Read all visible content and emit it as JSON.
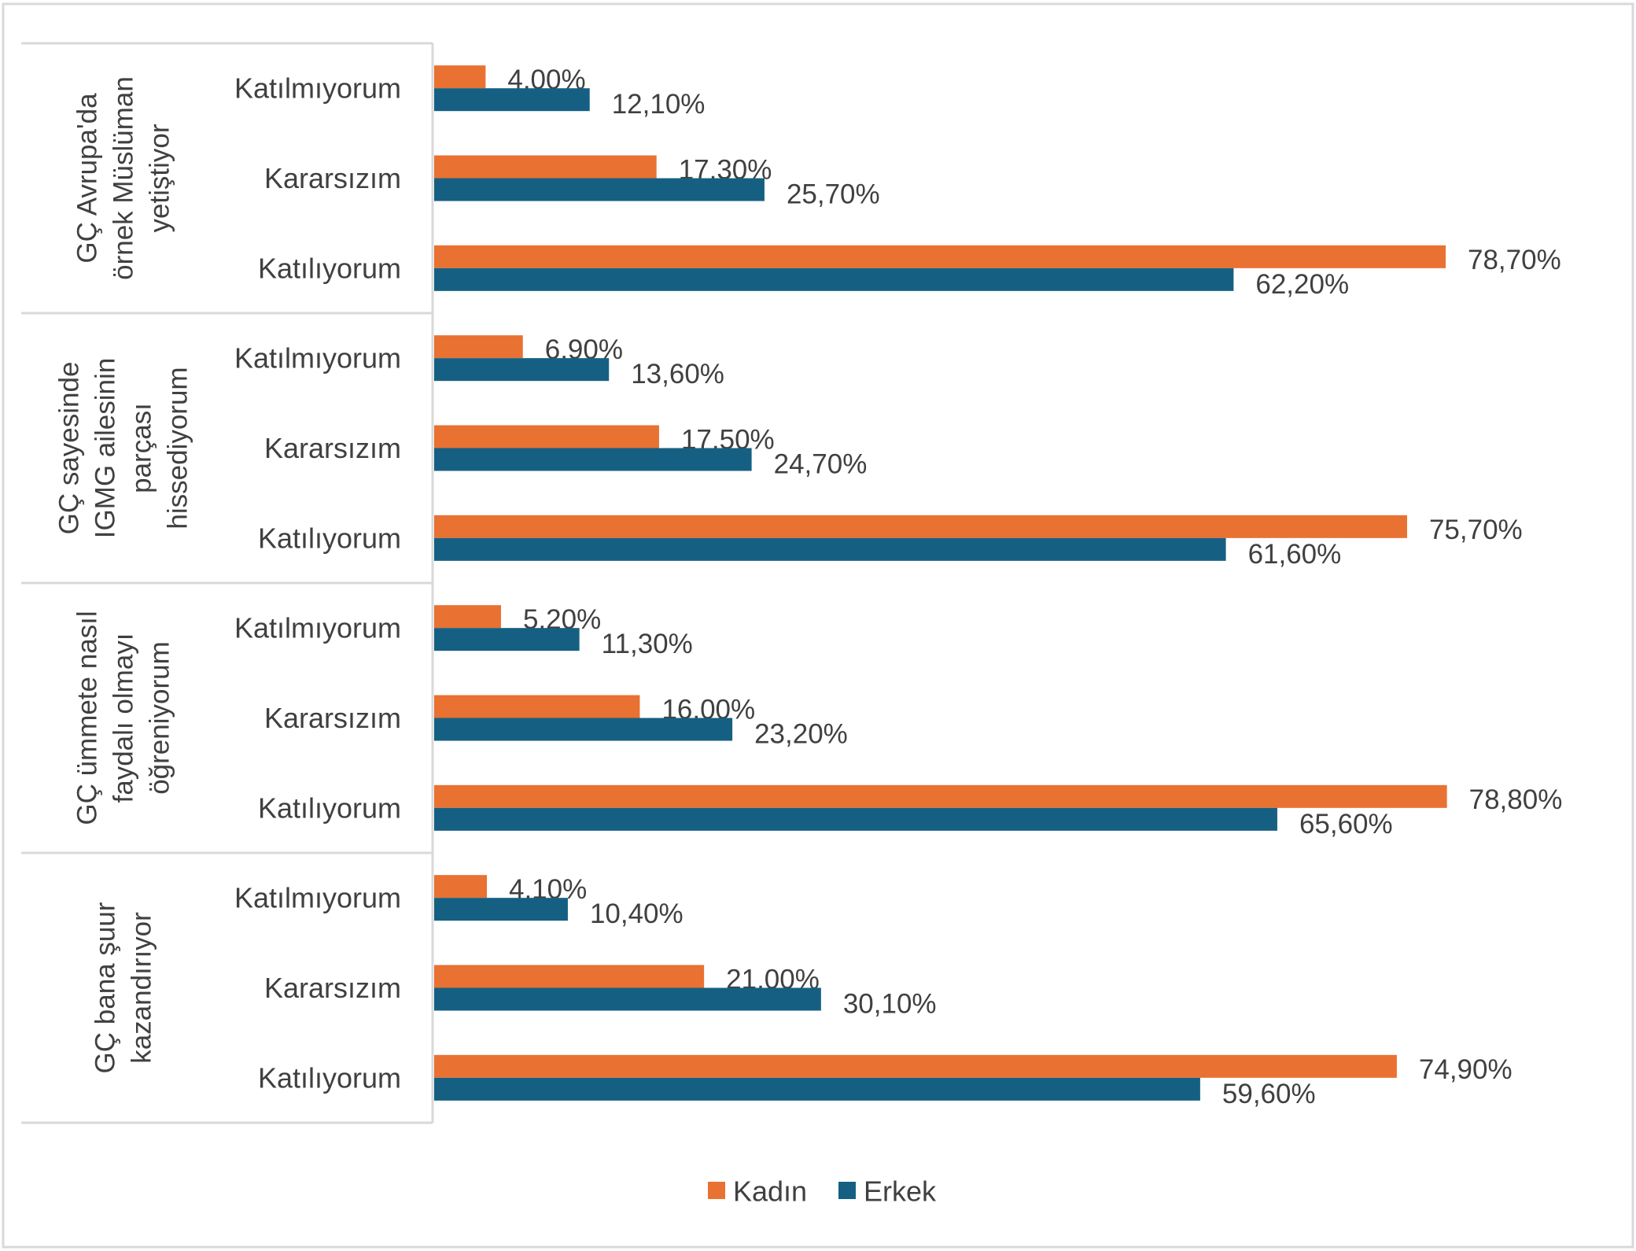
{
  "chart_data": {
    "type": "bar",
    "orientation": "horizontal",
    "groups": [
      {
        "label_lines": [
          "GÇ Avrupa'da",
          "örnek Müslüman",
          "yetiştiyor"
        ],
        "categories": [
          "Katılmıyorum",
          "Kararsızım",
          "Katılıyorum"
        ],
        "values": {
          "Kadın": [
            4.0,
            17.3,
            78.7
          ],
          "Erkek": [
            12.1,
            25.7,
            62.2
          ]
        },
        "data_labels": {
          "Kadın": [
            "4,00%",
            "17,30%",
            "78,70%"
          ],
          "Erkek": [
            "12,10%",
            "25,70%",
            "62,20%"
          ]
        }
      },
      {
        "label_lines": [
          "GÇ sayesinde",
          "IGMG ailesinin",
          "parçası",
          "hissediyorum"
        ],
        "categories": [
          "Katılmıyorum",
          "Kararsızım",
          "Katılıyorum"
        ],
        "values": {
          "Kadın": [
            6.9,
            17.5,
            75.7
          ],
          "Erkek": [
            13.6,
            24.7,
            61.6
          ]
        },
        "data_labels": {
          "Kadın": [
            "6,90%",
            "17,50%",
            "75,70%"
          ],
          "Erkek": [
            "13,60%",
            "24,70%",
            "61,60%"
          ]
        }
      },
      {
        "label_lines": [
          "GÇ ümmete nasıl",
          "faydalı olmayı",
          "öğreniyorum"
        ],
        "categories": [
          "Katılmıyorum",
          "Kararsızım",
          "Katılıyorum"
        ],
        "values": {
          "Kadın": [
            5.2,
            16.0,
            78.8
          ],
          "Erkek": [
            11.3,
            23.2,
            65.6
          ]
        },
        "data_labels": {
          "Kadın": [
            "5,20%",
            "16,00%",
            "78,80%"
          ],
          "Erkek": [
            "11,30%",
            "23,20%",
            "65,60%"
          ]
        }
      },
      {
        "label_lines": [
          "GÇ bana şuur",
          "kazandırıyor"
        ],
        "categories": [
          "Katılmıyorum",
          "Kararsızım",
          "Katılıyorum"
        ],
        "values": {
          "Kadın": [
            4.1,
            21.0,
            74.9
          ],
          "Erkek": [
            10.4,
            30.1,
            59.6
          ]
        },
        "data_labels": {
          "Kadın": [
            "4,10%",
            "21,00%",
            "74,90%"
          ],
          "Erkek": [
            "10,40%",
            "30,10%",
            "59,60%"
          ]
        }
      }
    ],
    "series": [
      {
        "name": "Kadın",
        "color": "#E97132"
      },
      {
        "name": "Erkek",
        "color": "#156082"
      }
    ],
    "xlim": [
      0,
      80
    ],
    "grid": false,
    "x_axis_visible": false,
    "legend": {
      "position": "bottom",
      "entries": [
        "Kadın",
        "Erkek"
      ]
    }
  }
}
